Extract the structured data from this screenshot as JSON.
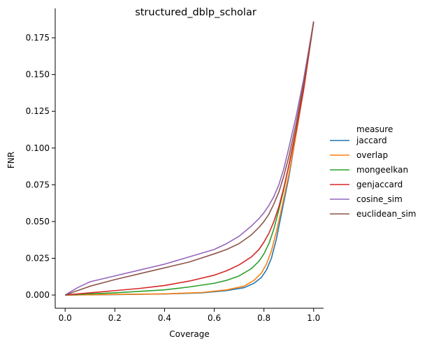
{
  "chart_data": {
    "type": "line",
    "title": "structured_dblp_scholar",
    "xlabel": "Coverage",
    "ylabel": "FNR",
    "xlim": [
      -0.04,
      1.04
    ],
    "ylim": [
      -0.009,
      0.195
    ],
    "xticks": [
      0.0,
      0.2,
      0.4,
      0.6,
      0.8,
      1.0
    ],
    "xtick_labels": [
      "0.0",
      "0.2",
      "0.4",
      "0.6",
      "0.8",
      "1.0"
    ],
    "yticks": [
      0.0,
      0.025,
      0.05,
      0.075,
      0.1,
      0.125,
      0.15,
      0.175
    ],
    "ytick_labels": [
      "0.000",
      "0.025",
      "0.050",
      "0.075",
      "0.100",
      "0.125",
      "0.150",
      "0.175"
    ],
    "grid": false,
    "legend": {
      "title": "measure",
      "placement": "right-outside"
    },
    "series": [
      {
        "name": "jaccard",
        "color": "#1f77b4",
        "x": [
          0,
          0.2,
          0.4,
          0.55,
          0.65,
          0.72,
          0.76,
          0.79,
          0.81,
          0.83,
          0.85,
          0.87,
          0.9,
          0.93,
          0.96,
          1.0
        ],
        "y": [
          0,
          0.0003,
          0.0007,
          0.0015,
          0.003,
          0.005,
          0.008,
          0.012,
          0.017,
          0.025,
          0.038,
          0.055,
          0.08,
          0.11,
          0.14,
          0.186
        ]
      },
      {
        "name": "overlap",
        "color": "#ff7f0e",
        "x": [
          0,
          0.2,
          0.4,
          0.55,
          0.65,
          0.72,
          0.76,
          0.79,
          0.81,
          0.83,
          0.85,
          0.87,
          0.9,
          0.93,
          0.96,
          1.0
        ],
        "y": [
          0,
          0.0004,
          0.0008,
          0.0017,
          0.0035,
          0.006,
          0.01,
          0.015,
          0.021,
          0.03,
          0.043,
          0.058,
          0.082,
          0.11,
          0.14,
          0.186
        ]
      },
      {
        "name": "mongeelkan",
        "color": "#2ca02c",
        "x": [
          0,
          0.1,
          0.2,
          0.3,
          0.4,
          0.5,
          0.6,
          0.65,
          0.7,
          0.75,
          0.78,
          0.8,
          0.82,
          0.84,
          0.86,
          0.88,
          0.9,
          0.93,
          0.96,
          1.0
        ],
        "y": [
          0,
          0.0008,
          0.0015,
          0.0025,
          0.0035,
          0.0055,
          0.008,
          0.01,
          0.013,
          0.018,
          0.023,
          0.028,
          0.035,
          0.045,
          0.058,
          0.072,
          0.088,
          0.113,
          0.142,
          0.186
        ]
      },
      {
        "name": "genjaccard",
        "color": "#d62728",
        "x": [
          0,
          0.1,
          0.2,
          0.3,
          0.4,
          0.5,
          0.6,
          0.65,
          0.7,
          0.75,
          0.78,
          0.8,
          0.82,
          0.84,
          0.86,
          0.88,
          0.9,
          0.93,
          0.96,
          1.0
        ],
        "y": [
          0,
          0.0015,
          0.003,
          0.0045,
          0.0065,
          0.0095,
          0.0135,
          0.0165,
          0.0205,
          0.026,
          0.031,
          0.036,
          0.042,
          0.05,
          0.06,
          0.073,
          0.088,
          0.112,
          0.14,
          0.186
        ]
      },
      {
        "name": "cosine_sim",
        "color": "#9467bd",
        "x": [
          0,
          0.05,
          0.1,
          0.2,
          0.3,
          0.4,
          0.5,
          0.6,
          0.65,
          0.7,
          0.75,
          0.78,
          0.8,
          0.82,
          0.84,
          0.86,
          0.88,
          0.9,
          0.93,
          0.96,
          1.0
        ],
        "y": [
          0,
          0.005,
          0.009,
          0.013,
          0.017,
          0.021,
          0.026,
          0.031,
          0.035,
          0.04,
          0.047,
          0.052,
          0.056,
          0.061,
          0.067,
          0.075,
          0.086,
          0.1,
          0.122,
          0.147,
          0.186
        ]
      },
      {
        "name": "euclidean_sim",
        "color": "#8c564b",
        "x": [
          0,
          0.05,
          0.1,
          0.2,
          0.3,
          0.4,
          0.5,
          0.6,
          0.65,
          0.7,
          0.75,
          0.78,
          0.8,
          0.82,
          0.84,
          0.86,
          0.88,
          0.9,
          0.93,
          0.96,
          1.0
        ],
        "y": [
          0,
          0.003,
          0.006,
          0.0105,
          0.0145,
          0.0185,
          0.0225,
          0.028,
          0.031,
          0.035,
          0.041,
          0.046,
          0.05,
          0.055,
          0.062,
          0.07,
          0.081,
          0.094,
          0.117,
          0.144,
          0.186
        ]
      }
    ]
  }
}
